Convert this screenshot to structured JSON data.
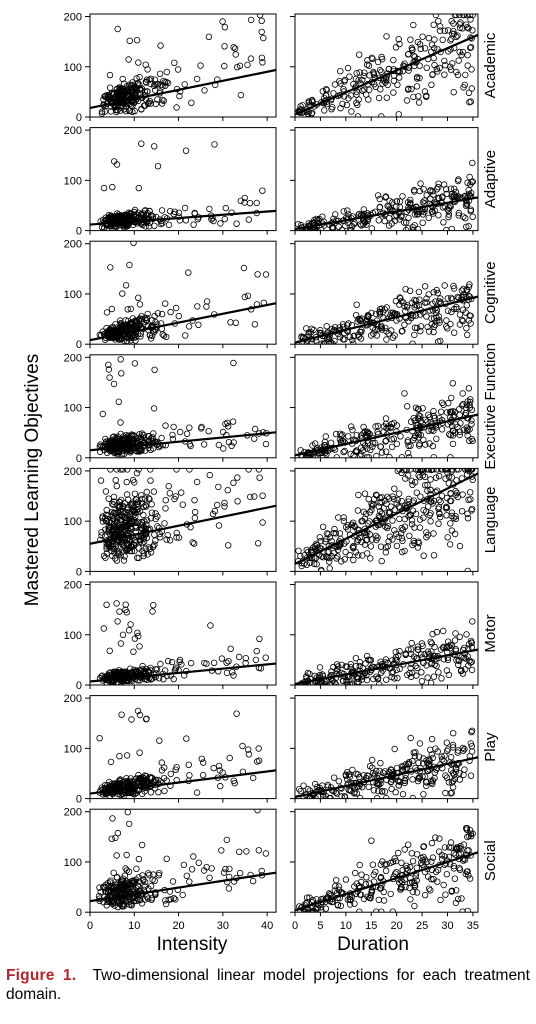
{
  "chart_data": {
    "type": "scatter",
    "ylabel": "Mastered Learning Objectives",
    "columns": [
      {
        "key": "intensity",
        "xlabel": "Intensity",
        "xlim": [
          0,
          42
        ],
        "xticks": [
          0,
          10,
          20,
          30,
          40
        ]
      },
      {
        "key": "duration",
        "xlabel": "Duration",
        "xlim": [
          0,
          36
        ],
        "xticks": [
          0,
          5,
          10,
          15,
          20,
          25,
          30,
          35
        ]
      }
    ],
    "ylim": [
      0,
      205
    ],
    "yticks": [
      0,
      100,
      200
    ],
    "panels": [
      {
        "domain": "Academic",
        "fits": {
          "intensity": {
            "intercept": 18,
            "slope": 1.8
          },
          "duration": {
            "intercept": 5,
            "slope": 4.4
          }
        }
      },
      {
        "domain": "Adaptive",
        "fits": {
          "intensity": {
            "intercept": 12,
            "slope": 0.65
          },
          "duration": {
            "intercept": 3,
            "slope": 1.75
          }
        }
      },
      {
        "domain": "Cognitive",
        "fits": {
          "intensity": {
            "intercept": 8,
            "slope": 1.75
          },
          "duration": {
            "intercept": 3,
            "slope": 2.55
          }
        }
      },
      {
        "domain": "Executive Function",
        "fits": {
          "intensity": {
            "intercept": 15,
            "slope": 0.85
          },
          "duration": {
            "intercept": 5,
            "slope": 2.25
          }
        }
      },
      {
        "domain": "Language",
        "fits": {
          "intensity": {
            "intercept": 55,
            "slope": 1.8
          },
          "duration": {
            "intercept": 15,
            "slope": 5.0
          }
        }
      },
      {
        "domain": "Motor",
        "fits": {
          "intensity": {
            "intercept": 7,
            "slope": 0.85
          },
          "duration": {
            "intercept": 2,
            "slope": 1.9
          }
        }
      },
      {
        "domain": "Play",
        "fits": {
          "intensity": {
            "intercept": 10,
            "slope": 1.1
          },
          "duration": {
            "intercept": 3,
            "slope": 2.2
          }
        }
      },
      {
        "domain": "Social",
        "fits": {
          "intensity": {
            "intercept": 22,
            "slope": 1.35
          },
          "duration": {
            "intercept": 4,
            "slope": 3.2
          }
        }
      }
    ]
  },
  "caption": {
    "label": "Figure 1.",
    "text": "Two-dimensional linear model projections for each treatment domain."
  }
}
